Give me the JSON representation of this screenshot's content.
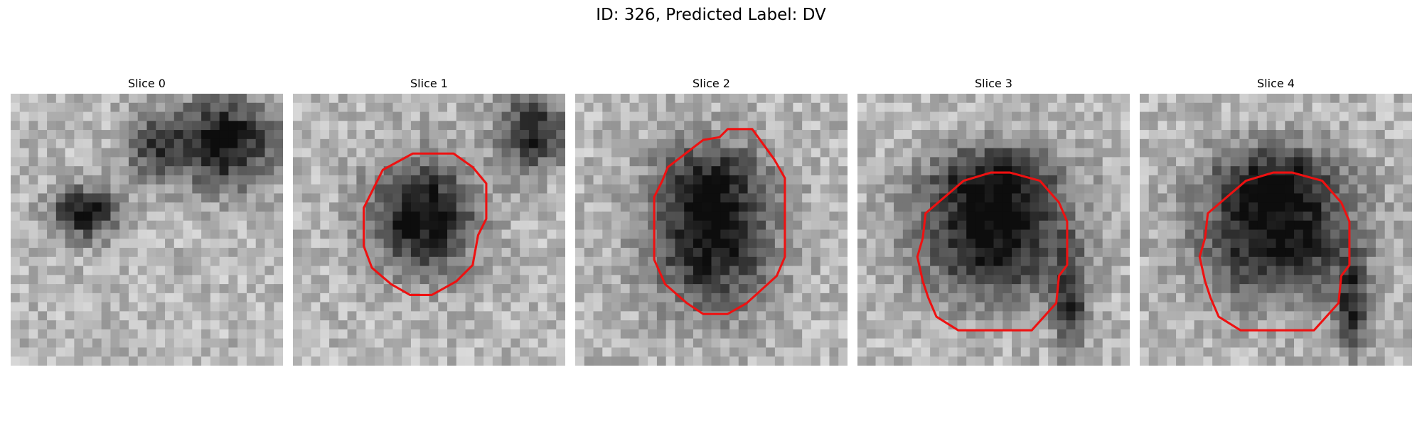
{
  "figure": {
    "title": "ID: 326, Predicted Label: DV"
  },
  "grid": {
    "rows": 30,
    "cols": 30
  },
  "colors": {
    "contour": "#ee1111",
    "background": "#ffffff"
  },
  "panels": [
    {
      "title": "Slice 0",
      "blobs": [
        [
          0.27,
          0.44,
          0.12,
          0.09,
          0.7
        ],
        [
          0.78,
          0.18,
          0.2,
          0.16,
          0.7
        ],
        [
          0.52,
          0.2,
          0.1,
          0.12,
          0.35
        ]
      ],
      "base": 0.72,
      "contour": []
    },
    {
      "title": "Slice 1",
      "blobs": [
        [
          0.48,
          0.45,
          0.19,
          0.2,
          0.72
        ],
        [
          0.88,
          0.14,
          0.12,
          0.14,
          0.6
        ]
      ],
      "base": 0.72,
      "contour": [
        [
          0.33,
          0.28
        ],
        [
          0.44,
          0.22
        ],
        [
          0.59,
          0.22
        ],
        [
          0.66,
          0.27
        ],
        [
          0.71,
          0.33
        ],
        [
          0.71,
          0.46
        ],
        [
          0.68,
          0.52
        ],
        [
          0.66,
          0.63
        ],
        [
          0.6,
          0.69
        ],
        [
          0.51,
          0.74
        ],
        [
          0.43,
          0.74
        ],
        [
          0.36,
          0.7
        ],
        [
          0.29,
          0.64
        ],
        [
          0.26,
          0.56
        ],
        [
          0.26,
          0.42
        ],
        [
          0.29,
          0.36
        ]
      ]
    },
    {
      "title": "Slice 2",
      "blobs": [
        [
          0.5,
          0.53,
          0.22,
          0.26,
          0.68
        ],
        [
          0.5,
          0.3,
          0.2,
          0.14,
          0.3
        ]
      ],
      "base": 0.72,
      "contour": [
        [
          0.34,
          0.27
        ],
        [
          0.47,
          0.17
        ],
        [
          0.53,
          0.16
        ],
        [
          0.56,
          0.13
        ],
        [
          0.65,
          0.13
        ],
        [
          0.73,
          0.24
        ],
        [
          0.77,
          0.31
        ],
        [
          0.77,
          0.6
        ],
        [
          0.74,
          0.67
        ],
        [
          0.63,
          0.77
        ],
        [
          0.56,
          0.81
        ],
        [
          0.47,
          0.81
        ],
        [
          0.41,
          0.77
        ],
        [
          0.33,
          0.7
        ],
        [
          0.29,
          0.61
        ],
        [
          0.29,
          0.38
        ],
        [
          0.32,
          0.32
        ]
      ]
    },
    {
      "title": "Slice 3",
      "blobs": [
        [
          0.5,
          0.52,
          0.28,
          0.23,
          0.7
        ],
        [
          0.5,
          0.3,
          0.23,
          0.12,
          0.4
        ],
        [
          0.78,
          0.78,
          0.06,
          0.18,
          0.5
        ]
      ],
      "base": 0.72,
      "contour": [
        [
          0.25,
          0.44
        ],
        [
          0.39,
          0.32
        ],
        [
          0.49,
          0.29
        ],
        [
          0.56,
          0.29
        ],
        [
          0.67,
          0.32
        ],
        [
          0.74,
          0.4
        ],
        [
          0.77,
          0.47
        ],
        [
          0.77,
          0.63
        ],
        [
          0.74,
          0.67
        ],
        [
          0.73,
          0.77
        ],
        [
          0.64,
          0.87
        ],
        [
          0.37,
          0.87
        ],
        [
          0.29,
          0.82
        ],
        [
          0.26,
          0.75
        ],
        [
          0.24,
          0.69
        ],
        [
          0.22,
          0.6
        ],
        [
          0.24,
          0.53
        ]
      ]
    },
    {
      "title": "Slice 4",
      "blobs": [
        [
          0.5,
          0.52,
          0.28,
          0.23,
          0.7
        ],
        [
          0.5,
          0.3,
          0.23,
          0.12,
          0.4
        ],
        [
          0.78,
          0.78,
          0.06,
          0.18,
          0.5
        ]
      ],
      "base": 0.72,
      "contour": [
        [
          0.25,
          0.44
        ],
        [
          0.39,
          0.32
        ],
        [
          0.49,
          0.29
        ],
        [
          0.56,
          0.29
        ],
        [
          0.67,
          0.32
        ],
        [
          0.74,
          0.4
        ],
        [
          0.77,
          0.47
        ],
        [
          0.77,
          0.63
        ],
        [
          0.74,
          0.67
        ],
        [
          0.73,
          0.77
        ],
        [
          0.64,
          0.87
        ],
        [
          0.37,
          0.87
        ],
        [
          0.29,
          0.82
        ],
        [
          0.26,
          0.75
        ],
        [
          0.24,
          0.69
        ],
        [
          0.22,
          0.6
        ],
        [
          0.24,
          0.53
        ]
      ]
    }
  ]
}
